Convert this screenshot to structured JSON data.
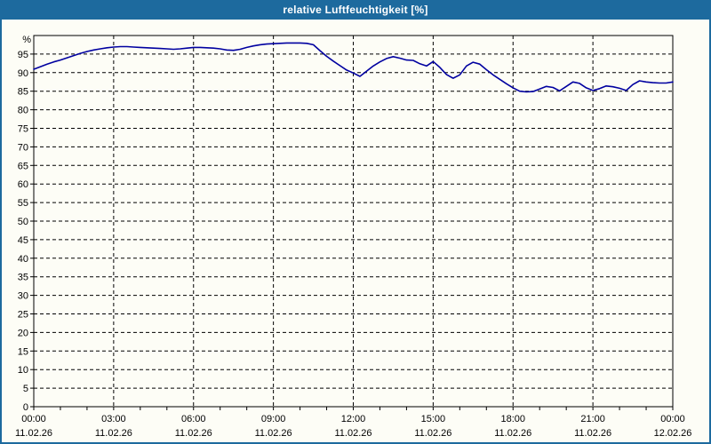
{
  "title": "relative Luftfeuchtigkeit [%]",
  "colors": {
    "titlebar_bg": "#1d6a9e",
    "titlebar_text": "#ffffff",
    "window_border": "#1d6a9e",
    "plot_background": "#fdfdf6",
    "grid": "#000000",
    "axis": "#000000",
    "line": "#0000a0"
  },
  "chart_data": {
    "type": "line",
    "title": "relative Luftfeuchtigkeit [%]",
    "ylabel": "%",
    "ylim": [
      0,
      100
    ],
    "ytick_step": 5,
    "grid": "dashed",
    "legend": "none",
    "x_hours": 24,
    "x_minor_tick_minutes": 60,
    "x_major_ticks": [
      {
        "time": "00:00",
        "date": "11.02.26"
      },
      {
        "time": "03:00",
        "date": "11.02.26"
      },
      {
        "time": "06:00",
        "date": "11.02.26"
      },
      {
        "time": "09:00",
        "date": "11.02.26"
      },
      {
        "time": "12:00",
        "date": "11.02.26"
      },
      {
        "time": "15:00",
        "date": "11.02.26"
      },
      {
        "time": "18:00",
        "date": "11.02.26"
      },
      {
        "time": "21:00",
        "date": "11.02.26"
      },
      {
        "time": "00:00",
        "date": "12.02.26"
      }
    ],
    "series": [
      {
        "name": "relative Luftfeuchtigkeit",
        "color": "#0000a0",
        "x_minutes_step": 15,
        "values": [
          90.9,
          91.6,
          92.3,
          92.9,
          93.4,
          94.0,
          94.6,
          95.2,
          95.7,
          96.1,
          96.4,
          96.7,
          96.9,
          97.0,
          97.0,
          96.9,
          96.8,
          96.7,
          96.6,
          96.5,
          96.4,
          96.3,
          96.4,
          96.6,
          96.8,
          96.8,
          96.7,
          96.6,
          96.4,
          96.1,
          96.0,
          96.3,
          96.8,
          97.2,
          97.5,
          97.7,
          97.8,
          97.9,
          98.0,
          98.0,
          98.0,
          97.9,
          97.5,
          95.9,
          94.4,
          93.1,
          91.9,
          90.7,
          89.9,
          89.0,
          90.4,
          91.8,
          92.9,
          93.8,
          94.3,
          93.9,
          93.4,
          93.3,
          92.4,
          91.8,
          93.0,
          91.4,
          89.5,
          88.5,
          89.4,
          91.8,
          92.8,
          92.3,
          90.8,
          89.4,
          88.2,
          87.0,
          85.9,
          85.0,
          84.8,
          84.9,
          85.6,
          86.3,
          86.0,
          85.1,
          86.3,
          87.5,
          87.1,
          85.9,
          85.2,
          85.7,
          86.4,
          86.2,
          85.8,
          85.2,
          86.8,
          87.8,
          87.5,
          87.3,
          87.2,
          87.2,
          87.5
        ]
      }
    ]
  }
}
